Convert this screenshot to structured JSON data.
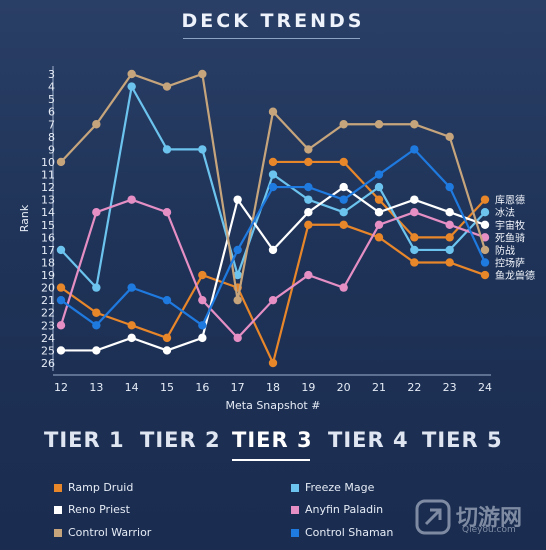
{
  "header": {
    "title": "DECK TRENDS"
  },
  "chart_data": {
    "type": "line",
    "xlabel": "Meta Snapshot #",
    "ylabel": "Rank",
    "x": [
      12,
      13,
      14,
      15,
      16,
      17,
      18,
      19,
      20,
      21,
      22,
      23,
      24
    ],
    "ylim": [
      26,
      3
    ],
    "yticks": [
      3,
      4,
      5,
      6,
      7,
      8,
      9,
      10,
      11,
      12,
      13,
      14,
      15,
      16,
      17,
      18,
      19,
      20,
      21,
      22,
      23,
      24,
      25,
      26
    ],
    "grid": false,
    "series": [
      {
        "name": "Ramp Druid",
        "color": "#e8862a",
        "values": [
          20,
          22,
          23,
          24,
          19,
          20,
          26,
          15,
          15,
          16,
          18,
          18,
          19
        ],
        "segments": [
          [
            12,
            17
          ],
          [
            18,
            24
          ]
        ],
        "extra_points": [
          [
            18,
            10
          ],
          [
            19,
            10
          ],
          [
            20,
            10
          ],
          [
            21,
            13
          ],
          [
            22,
            16
          ],
          [
            23,
            16
          ],
          [
            24,
            13
          ]
        ],
        "extra_segments": [
          [
            18,
            24
          ]
        ]
      },
      {
        "name": "Freeze Mage",
        "color": "#6cc4ee",
        "values": [
          17,
          20,
          4,
          9,
          9,
          19,
          11,
          13,
          14,
          12,
          17,
          17,
          14
        ]
      },
      {
        "name": "Reno Priest",
        "color": "#ffffff",
        "values": [
          25,
          25,
          24,
          25,
          24,
          13,
          17,
          14,
          12,
          14,
          13,
          14,
          15
        ]
      },
      {
        "name": "Anyfin Paladin",
        "color": "#e58fc4",
        "values": [
          23,
          14,
          13,
          14,
          21,
          24,
          21,
          19,
          20,
          15,
          14,
          15,
          16
        ]
      },
      {
        "name": "Control Warrior",
        "color": "#c6a57c",
        "values": [
          10,
          7,
          3,
          4,
          3,
          21,
          6,
          9,
          7,
          7,
          7,
          8,
          17
        ]
      },
      {
        "name": "Control Shaman",
        "color": "#1f7ae0",
        "values": [
          21,
          23,
          20,
          21,
          23,
          17,
          12,
          12,
          13,
          11,
          9,
          12,
          18
        ]
      }
    ],
    "end_labels": [
      {
        "text": "库恩德",
        "color": "#e8862a",
        "rank": 13
      },
      {
        "text": "冰法",
        "color": "#6cc4ee",
        "rank": 14
      },
      {
        "text": "宇宙牧",
        "color": "#ffffff",
        "rank": 15
      },
      {
        "text": "死鱼骑",
        "color": "#e58fc4",
        "rank": 16
      },
      {
        "text": "防战",
        "color": "#c6a57c",
        "rank": 17
      },
      {
        "text": "控场萨",
        "color": "#1f7ae0",
        "rank": 18
      },
      {
        "text": "鱼龙兽德",
        "color": "#e8862a",
        "rank": 19
      }
    ]
  },
  "tiers": [
    "TIER 1",
    "TIER 2",
    "TIER 3",
    "TIER 4",
    "TIER 5"
  ],
  "active_tier": "TIER 3",
  "legend": [
    {
      "label": "Ramp Druid",
      "color": "#e8862a"
    },
    {
      "label": "Freeze Mage",
      "color": "#6cc4ee"
    },
    {
      "label": "Reno Priest",
      "color": "#ffffff"
    },
    {
      "label": "Anyfin Paladin",
      "color": "#e58fc4"
    },
    {
      "label": "Control Warrior",
      "color": "#c6a57c"
    },
    {
      "label": "Control Shaman",
      "color": "#1f7ae0"
    }
  ],
  "watermark": {
    "text": "切游网",
    "sub": "Qieyou.com"
  }
}
